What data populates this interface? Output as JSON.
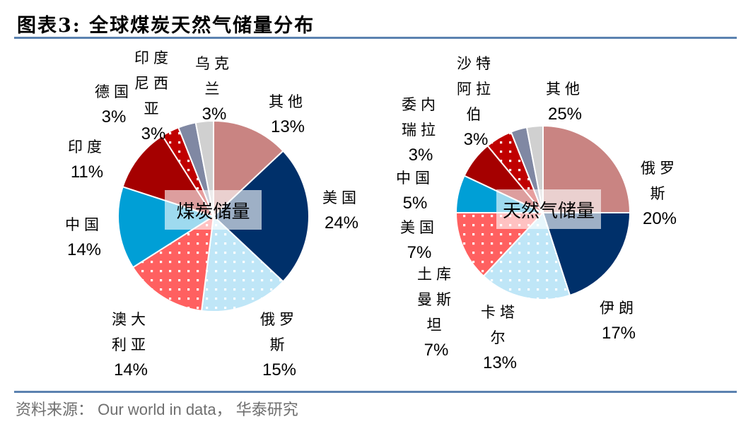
{
  "header": {
    "title": "图表3:  全球煤炭天然气储量分布"
  },
  "footer": {
    "source": "资料来源： Our world in data， 华泰研究"
  },
  "colors": {
    "other": "#c98482",
    "usa_coal": "#00306a",
    "russia_coal": "#bfe6f7",
    "australia": "#ff6060",
    "china_coal": "#009fd6",
    "india": "#a50000",
    "indonesia": "#c00000",
    "germany": "#8088a3",
    "ukraine": "#d0d0d0",
    "rule": "#5b82b0"
  },
  "chart_data": [
    {
      "type": "pie",
      "title": "煤炭储量",
      "center_label": "煤炭储量",
      "slices": [
        {
          "label": "其他",
          "value": 13,
          "color": "#c98482",
          "pattern": "solid"
        },
        {
          "label": "美国",
          "value": 24,
          "color": "#00306a",
          "pattern": "solid"
        },
        {
          "label": "俄罗斯",
          "value": 15,
          "color": "#bfe6f7",
          "pattern": "dots"
        },
        {
          "label": "澳大利亚",
          "value": 14,
          "color": "#ff6060",
          "pattern": "dots"
        },
        {
          "label": "中国",
          "value": 14,
          "color": "#009fd6",
          "pattern": "solid"
        },
        {
          "label": "印度",
          "value": 11,
          "color": "#a50000",
          "pattern": "solid"
        },
        {
          "label": "印度尼西亚",
          "value": 3,
          "color": "#c00000",
          "pattern": "dots"
        },
        {
          "label": "德国",
          "value": 3,
          "color": "#8088a3",
          "pattern": "solid"
        },
        {
          "label": "乌克兰",
          "value": 3,
          "color": "#d0d0d0",
          "pattern": "solid"
        }
      ],
      "labels": {
        "other": {
          "name": "其他",
          "pct": "13%"
        },
        "usa": {
          "name": "美国",
          "pct": "24%"
        },
        "russia": {
          "name1": "俄罗",
          "name2": "斯",
          "pct": "15%"
        },
        "australia": {
          "name1": "澳大",
          "name2": "利亚",
          "pct": "14%"
        },
        "china": {
          "name": "中国",
          "pct": "14%"
        },
        "india": {
          "name": "印度",
          "pct": "11%"
        },
        "indonesia": {
          "name1": "印度",
          "name2": "尼西",
          "name3": "亚",
          "pct": "3%"
        },
        "germany": {
          "name": "德国",
          "pct": "3%"
        },
        "ukraine": {
          "name1": "乌克",
          "name2": "兰",
          "pct": "3%"
        }
      }
    },
    {
      "type": "pie",
      "title": "天然气储量",
      "center_label": "天然气储量",
      "slices": [
        {
          "label": "其他",
          "value": 25,
          "color": "#c98482",
          "pattern": "solid"
        },
        {
          "label": "俄罗斯",
          "value": 20,
          "color": "#00306a",
          "pattern": "solid"
        },
        {
          "label": "伊朗",
          "value": 17,
          "color": "#bfe6f7",
          "pattern": "dots"
        },
        {
          "label": "卡塔尔",
          "value": 13,
          "color": "#ff6060",
          "pattern": "dots"
        },
        {
          "label": "土库曼斯坦",
          "value": 7,
          "color": "#009fd6",
          "pattern": "solid"
        },
        {
          "label": "美国",
          "value": 7,
          "color": "#a50000",
          "pattern": "solid"
        },
        {
          "label": "中国",
          "value": 5,
          "color": "#c00000",
          "pattern": "dots"
        },
        {
          "label": "委内瑞拉",
          "value": 3,
          "color": "#8088a3",
          "pattern": "solid"
        },
        {
          "label": "沙特阿拉伯",
          "value": 3,
          "color": "#d0d0d0",
          "pattern": "solid"
        }
      ],
      "labels": {
        "other": {
          "name": "其他",
          "pct": "25%"
        },
        "russia": {
          "name1": "俄罗",
          "name2": "斯",
          "pct": "20%"
        },
        "iran": {
          "name": "伊朗",
          "pct": "17%"
        },
        "qatar": {
          "name1": "卡塔",
          "name2": "尔",
          "pct": "13%"
        },
        "turkmenistan": {
          "name1": "土库",
          "name2": "曼斯",
          "name3": "坦",
          "pct": "7%"
        },
        "usa": {
          "name": "美国",
          "pct": "7%"
        },
        "china": {
          "name": "中国",
          "pct": "5%"
        },
        "venezuela": {
          "name1": "委内",
          "name2": "瑞拉",
          "pct": "3%"
        },
        "saudi": {
          "name1": "沙特",
          "name2": "阿拉",
          "name3": "伯",
          "pct": "3%"
        }
      }
    }
  ]
}
